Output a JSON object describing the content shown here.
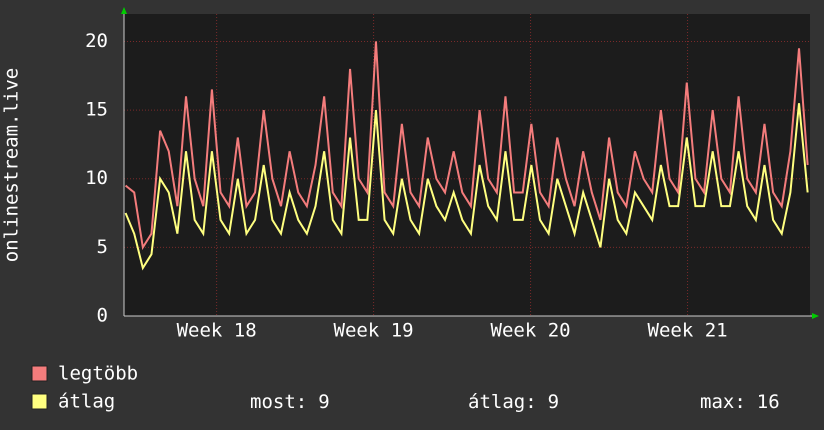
{
  "chart_data": {
    "type": "line",
    "y_label": "onlinestream.live",
    "xlim": [
      17.41,
      21.78
    ],
    "xticks": [
      {
        "value": 18,
        "label": "Week 18"
      },
      {
        "value": 19,
        "label": "Week 19"
      },
      {
        "value": 20,
        "label": "Week 20"
      },
      {
        "value": 21,
        "label": "Week 21"
      }
    ],
    "ylim": [
      0,
      22
    ],
    "yticks": [
      0,
      5,
      10,
      15,
      20
    ],
    "grid": true,
    "x": [
      17.42,
      17.475,
      17.53,
      17.585,
      17.64,
      17.695,
      17.75,
      17.805,
      17.86,
      17.915,
      17.97,
      18.025,
      18.08,
      18.135,
      18.19,
      18.245,
      18.3,
      18.355,
      18.41,
      18.465,
      18.52,
      18.575,
      18.63,
      18.685,
      18.74,
      18.795,
      18.85,
      18.905,
      18.96,
      19.015,
      19.07,
      19.125,
      19.18,
      19.235,
      19.29,
      19.345,
      19.4,
      19.455,
      19.51,
      19.565,
      19.62,
      19.675,
      19.73,
      19.785,
      19.84,
      19.895,
      19.95,
      20.005,
      20.06,
      20.115,
      20.17,
      20.225,
      20.28,
      20.335,
      20.39,
      20.445,
      20.5,
      20.555,
      20.61,
      20.665,
      20.72,
      20.775,
      20.83,
      20.885,
      20.94,
      20.995,
      21.05,
      21.105,
      21.16,
      21.215,
      21.27,
      21.325,
      21.38,
      21.435,
      21.49,
      21.545,
      21.6,
      21.655,
      21.71,
      21.765
    ],
    "series": [
      {
        "name": "legtöbb",
        "color": "#f47c7c",
        "values": [
          9.5,
          9,
          5,
          6,
          13.5,
          12,
          8,
          16,
          10,
          8,
          16.5,
          9,
          8,
          13,
          8,
          9,
          15,
          10,
          8,
          12,
          9,
          8,
          11,
          16,
          9,
          8,
          18,
          10,
          9,
          20,
          9,
          8,
          14,
          9,
          8,
          13,
          10,
          9,
          12,
          9,
          8,
          15,
          10,
          9,
          16,
          9,
          9,
          14,
          9,
          8,
          13,
          10,
          8,
          12,
          9,
          7,
          13,
          9,
          8,
          12,
          10,
          9,
          15,
          10,
          9,
          17,
          10,
          9,
          15,
          10,
          9,
          16,
          10,
          9,
          14,
          9,
          8,
          12,
          19.5,
          11
        ]
      },
      {
        "name": "átlag",
        "color": "#ffff80",
        "values": [
          7.5,
          6,
          3.5,
          4.5,
          10,
          9,
          6,
          12,
          7,
          6,
          12,
          7,
          6,
          10,
          6,
          7,
          11,
          7,
          6,
          9,
          7,
          6,
          8,
          12,
          7,
          6,
          13,
          7,
          7,
          15,
          7,
          6,
          10,
          7,
          6,
          10,
          8,
          7,
          9,
          7,
          6,
          11,
          8,
          7,
          12,
          7,
          7,
          11,
          7,
          6,
          10,
          8,
          6,
          9,
          7,
          5,
          10,
          7,
          6,
          9,
          8,
          7,
          11,
          8,
          8,
          13,
          8,
          8,
          12,
          8,
          8,
          12,
          8,
          7,
          11,
          7,
          6,
          9,
          15.5,
          9
        ]
      }
    ],
    "stats": [
      {
        "label": "most:",
        "value": 9
      },
      {
        "label": "átlag:",
        "value": 9
      },
      {
        "label": "max:",
        "value": 16
      }
    ]
  }
}
